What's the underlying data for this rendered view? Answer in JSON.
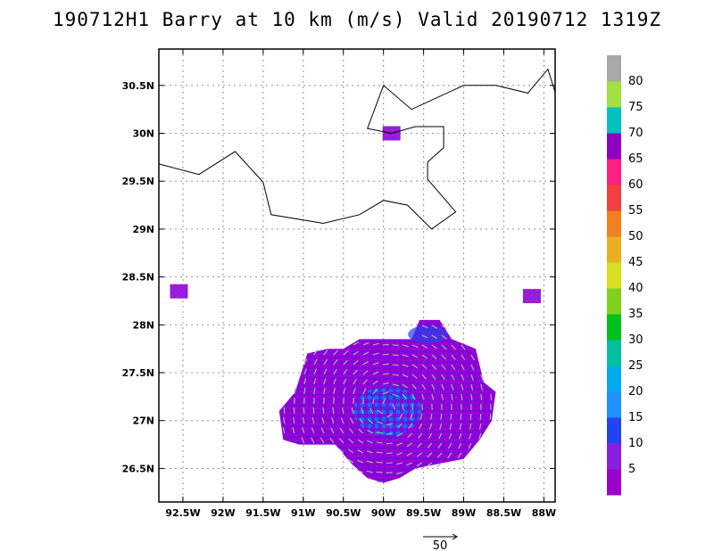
{
  "title": "190712H1 Barry at 10 km (m/s) Valid 20190712 1319Z",
  "chart_data": {
    "type": "heatmap",
    "title": "190712H1 Barry at 10 km (m/s) Valid 20190712 1319Z",
    "xlabel": "",
    "ylabel": "",
    "xlim": [
      -92.8,
      -87.86
    ],
    "ylim": [
      26.15,
      30.88
    ],
    "grid": true,
    "x_ticks": [
      {
        "value": -92.5,
        "label": "92.5W"
      },
      {
        "value": -92.0,
        "label": "92W"
      },
      {
        "value": -91.5,
        "label": "91.5W"
      },
      {
        "value": -91.0,
        "label": "91W"
      },
      {
        "value": -90.5,
        "label": "90.5W"
      },
      {
        "value": -90.0,
        "label": "90W"
      },
      {
        "value": -89.5,
        "label": "89.5W"
      },
      {
        "value": -89.0,
        "label": "89W"
      },
      {
        "value": -88.5,
        "label": "88.5W"
      },
      {
        "value": -88.0,
        "label": "88W"
      }
    ],
    "y_ticks": [
      {
        "value": 26.5,
        "label": "26.5N"
      },
      {
        "value": 27.0,
        "label": "27N"
      },
      {
        "value": 27.5,
        "label": "27.5N"
      },
      {
        "value": 28.0,
        "label": "28N"
      },
      {
        "value": 28.5,
        "label": "28.5N"
      },
      {
        "value": 29.0,
        "label": "29N"
      },
      {
        "value": 29.5,
        "label": "29.5N"
      },
      {
        "value": 30.0,
        "label": "30N"
      },
      {
        "value": 30.5,
        "label": "30.5N"
      }
    ],
    "colorbar": {
      "labels": [
        "5",
        "10",
        "15",
        "20",
        "25",
        "30",
        "35",
        "40",
        "45",
        "50",
        "55",
        "60",
        "65",
        "70",
        "75",
        "80"
      ],
      "colors": [
        "#9900cc",
        "#8a1fe0",
        "#2244ee",
        "#1e90ff",
        "#00aaee",
        "#00c0a0",
        "#00c020",
        "#80d020",
        "#d8e020",
        "#e8b020",
        "#f08020",
        "#f04040",
        "#ff2080",
        "#9000c0",
        "#00c0c0",
        "#a0e040",
        "#a8a8a8"
      ]
    },
    "coastline": [
      [
        -92.8,
        29.68
      ],
      [
        -92.3,
        29.57
      ],
      [
        -91.85,
        29.81
      ],
      [
        -91.5,
        29.49
      ],
      [
        -91.4,
        29.15
      ],
      [
        -90.75,
        29.06
      ],
      [
        -90.3,
        29.15
      ],
      [
        -90.0,
        29.3
      ],
      [
        -89.7,
        29.25
      ],
      [
        -89.4,
        29.0
      ],
      [
        -89.1,
        29.18
      ],
      [
        -89.45,
        29.52
      ],
      [
        -89.45,
        29.7
      ],
      [
        -89.25,
        29.85
      ],
      [
        -89.25,
        30.07
      ],
      [
        -89.6,
        30.07
      ],
      [
        -89.9,
        30.0
      ],
      [
        -90.2,
        30.05
      ],
      [
        -90.0,
        30.5
      ],
      [
        -89.65,
        30.25
      ],
      [
        -89.0,
        30.5
      ],
      [
        -88.6,
        30.5
      ],
      [
        -88.2,
        30.42
      ],
      [
        -87.95,
        30.67
      ],
      [
        -87.86,
        30.43
      ]
    ],
    "wind_regions": [
      {
        "name": "main",
        "value_range": "5-15",
        "outline": [
          [
            -91.3,
            27.1
          ],
          [
            -91.1,
            27.3
          ],
          [
            -90.95,
            27.7
          ],
          [
            -90.7,
            27.75
          ],
          [
            -90.5,
            27.75
          ],
          [
            -90.3,
            27.85
          ],
          [
            -90.0,
            27.85
          ],
          [
            -89.65,
            27.85
          ],
          [
            -89.55,
            28.05
          ],
          [
            -89.3,
            28.05
          ],
          [
            -89.15,
            27.85
          ],
          [
            -89.0,
            27.8
          ],
          [
            -88.85,
            27.75
          ],
          [
            -88.75,
            27.4
          ],
          [
            -88.6,
            27.3
          ],
          [
            -88.65,
            27.0
          ],
          [
            -88.8,
            26.8
          ],
          [
            -89.0,
            26.6
          ],
          [
            -89.3,
            26.55
          ],
          [
            -89.6,
            26.5
          ],
          [
            -89.8,
            26.4
          ],
          [
            -90.0,
            26.35
          ],
          [
            -90.2,
            26.4
          ],
          [
            -90.4,
            26.55
          ],
          [
            -90.6,
            26.75
          ],
          [
            -90.8,
            26.75
          ],
          [
            -91.05,
            26.75
          ],
          [
            -91.25,
            26.8
          ]
        ]
      },
      {
        "name": "west-speckle",
        "value_range": "5-10",
        "center": [
          -92.55,
          28.35
        ]
      },
      {
        "name": "east-speckle",
        "value_range": "5-10",
        "center": [
          -88.15,
          28.3
        ]
      },
      {
        "name": "coastal-speckle",
        "value_range": "5-15",
        "center": [
          -89.9,
          30.0
        ]
      }
    ],
    "reference_vector": {
      "value": 50,
      "label": "50"
    }
  }
}
